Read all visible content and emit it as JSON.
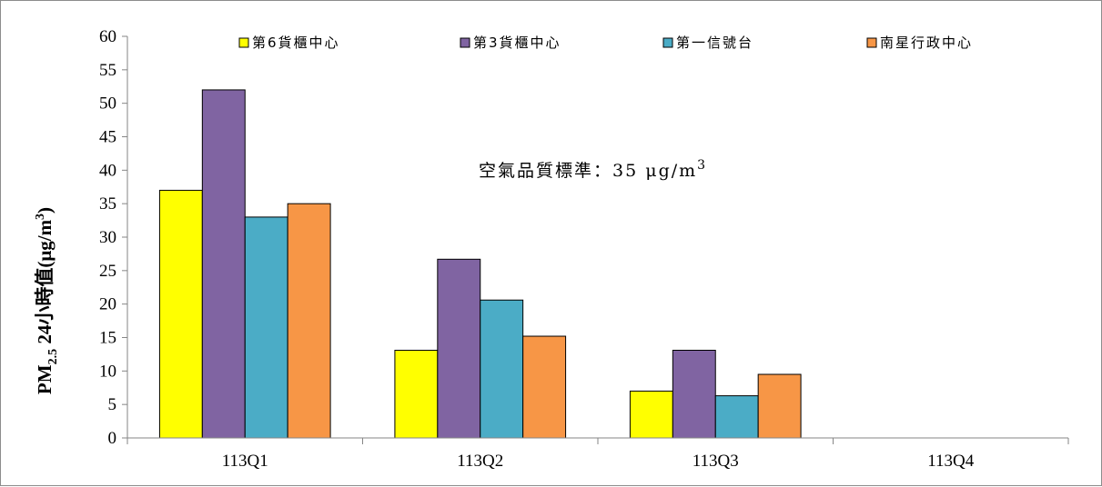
{
  "chart_data": {
    "type": "bar",
    "ylabel_main": "PM",
    "ylabel_sub": "2.5",
    "ylabel_rest": " 24小時值(μg/m",
    "ylabel_sup": "3",
    "ylabel_close": ")",
    "ylim": [
      0,
      60
    ],
    "yticks": [
      "0",
      "5",
      "10",
      "15",
      "20",
      "25",
      "30",
      "35",
      "40",
      "45",
      "50",
      "55",
      "60"
    ],
    "categories": [
      "113Q1",
      "113Q2",
      "113Q3",
      "113Q4"
    ],
    "series": [
      {
        "name": "第6貨櫃中心",
        "color": "#ffff00",
        "values": [
          37,
          13.1,
          7,
          null
        ]
      },
      {
        "name": "第3貨櫃中心",
        "color": "#8064a2",
        "values": [
          52,
          26.7,
          13.1,
          null
        ]
      },
      {
        "name": "第一信號台",
        "color": "#4bacc6",
        "values": [
          33,
          20.6,
          6.3,
          null
        ]
      },
      {
        "name": "南星行政中心",
        "color": "#f79646",
        "values": [
          35,
          15.2,
          9.5,
          null
        ]
      }
    ],
    "reference_line": {
      "value": 35,
      "color": "#c0504d",
      "label": "空氣品質標準：35 μg/m",
      "label_sup": "3"
    },
    "legend_position": "top",
    "grid": false
  }
}
